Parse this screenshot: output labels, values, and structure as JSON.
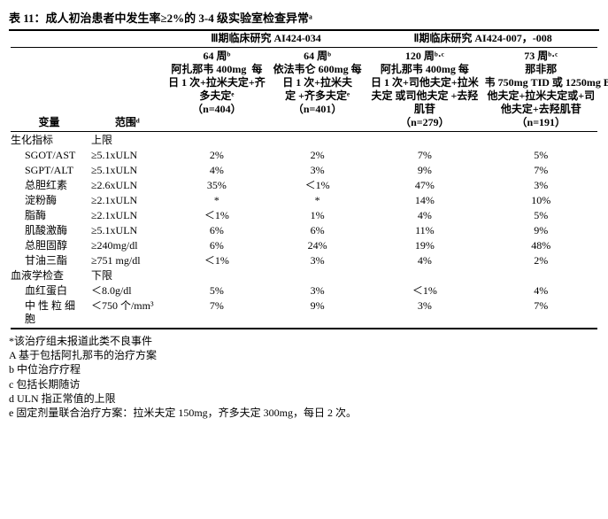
{
  "title": "表 11：成人初治患者中发生率≥2%的 3-4 级实验室检查异常ᵃ",
  "study_groups": {
    "g1": "Ⅲ期临床研究 AI424-034",
    "g2": "Ⅱ期临床研究 AI424-007，-008"
  },
  "col_headers": {
    "var": "变量",
    "range": "范围ᵈ",
    "c1": "64 周ᵇ\n阿扎那韦 400mg  每日 1 次+拉米夫定+齐多夫定ᵉ\n（n=404）",
    "c2": "64 周ᵇ\n依法韦仑 600mg 每日 1 次+拉米夫定 +齐多夫定ᵉ\n（n=401）",
    "c3": "120 周ᵇ·ᶜ\n阿扎那韦 400mg 每日 1 次+司他夫定+拉米夫定 或司他夫定 +去羟肌苷\n（n=279）",
    "c4": "73 周ᵇ·ᶜ\n那非那韦 750mg TID 或 1250mg BID+司他夫定+拉米夫定或+司他夫定+去羟肌苷\n（n=191）"
  },
  "sections": [
    {
      "label": "生化指标",
      "range": "上限",
      "rows": [
        {
          "name": "SGOT/AST",
          "range": "≥5.1xULN",
          "v": [
            "2%",
            "2%",
            "7%",
            "5%"
          ]
        },
        {
          "name": "SGPT/ALT",
          "range": "≥5.1xULN",
          "v": [
            "4%",
            "3%",
            "9%",
            "7%"
          ]
        },
        {
          "name": "总胆红素",
          "range": "≥2.6xULN",
          "v": [
            "35%",
            "＜1%",
            "47%",
            "3%"
          ]
        },
        {
          "name": "淀粉酶",
          "range": "≥2.1xULN",
          "v": [
            "*",
            "*",
            "14%",
            "10%"
          ]
        },
        {
          "name": "脂酶",
          "range": "≥2.1xULN",
          "v": [
            "＜1%",
            "1%",
            "4%",
            "5%"
          ]
        },
        {
          "name": "肌酸激酶",
          "range": "≥5.1xULN",
          "v": [
            "6%",
            "6%",
            "11%",
            "9%"
          ]
        },
        {
          "name": "总胆固醇",
          "range": "≥240mg/dl",
          "v": [
            "6%",
            "24%",
            "19%",
            "48%"
          ]
        },
        {
          "name": "甘油三酯",
          "range": "≥751 mg/dl",
          "v": [
            "＜1%",
            "3%",
            "4%",
            "2%"
          ]
        }
      ]
    },
    {
      "label": "血液学检查",
      "range": "下限",
      "rows": [
        {
          "name": "血红蛋白",
          "range": "＜8.0g/dl",
          "v": [
            "5%",
            "3%",
            "＜1%",
            "4%"
          ]
        },
        {
          "name": "中 性 粒 细 胞",
          "range": "＜750 个/mm³",
          "v": [
            "7%",
            "9%",
            "3%",
            "7%"
          ]
        }
      ]
    }
  ],
  "footnotes": [
    "*该治疗组未报道此类不良事件",
    "A 基于包括阿扎那韦的治疗方案",
    "b 中位治疗疗程",
    "c 包括长期随访",
    "d ULN 指正常值的上限",
    "e 固定剂量联合治疗方案：拉米夫定 150mg，齐多夫定 300mg，每日 2 次。"
  ]
}
